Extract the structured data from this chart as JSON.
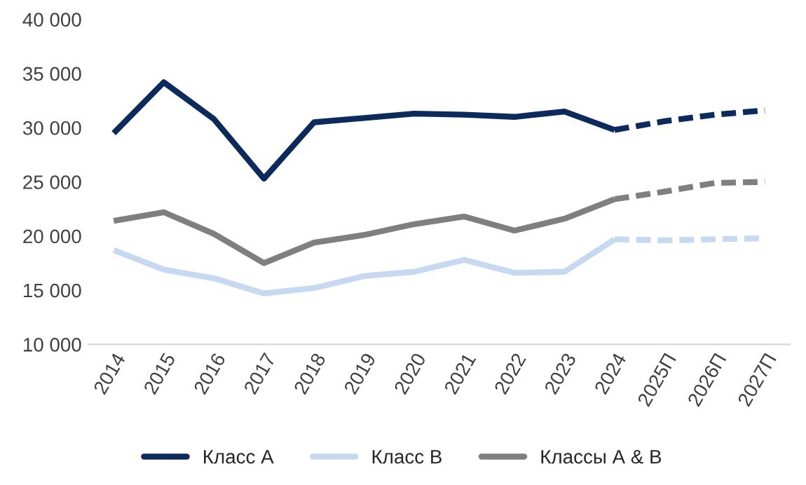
{
  "chart_data": {
    "type": "line",
    "categories": [
      "2014",
      "2015",
      "2016",
      "2017",
      "2018",
      "2019",
      "2020",
      "2021",
      "2022",
      "2023",
      "2024",
      "2025П",
      "2026П",
      "2027П"
    ],
    "series": [
      {
        "name": "Класс А",
        "color": "#0d2a5c",
        "values": [
          29500,
          34200,
          30800,
          25300,
          30500,
          30900,
          31300,
          31200,
          31000,
          31500,
          29800,
          null,
          null,
          null
        ]
      },
      {
        "name": "Класс В",
        "color": "#c6d9f1",
        "values": [
          18700,
          16900,
          16100,
          14700,
          15200,
          16300,
          16700,
          17800,
          16600,
          16700,
          19700,
          null,
          null,
          null
        ]
      },
      {
        "name": "Классы А & В",
        "color": "#7f7f7f",
        "values": [
          21400,
          22200,
          20200,
          17500,
          19400,
          20100,
          21100,
          21800,
          20500,
          21600,
          23400,
          null,
          null,
          null
        ]
      },
      {
        "color": "#0d2a5c",
        "line_style": "dashed",
        "values": [
          null,
          null,
          null,
          null,
          null,
          null,
          null,
          null,
          null,
          null,
          29800,
          30600,
          31200,
          31600
        ]
      },
      {
        "color": "#c6d9f1",
        "line_style": "dashed",
        "values": [
          null,
          null,
          null,
          null,
          null,
          null,
          null,
          null,
          null,
          null,
          19700,
          19600,
          19700,
          19800
        ]
      },
      {
        "color": "#7f7f7f",
        "line_style": "dashed",
        "values": [
          null,
          null,
          null,
          null,
          null,
          null,
          null,
          null,
          null,
          null,
          23400,
          24100,
          24900,
          25000
        ]
      }
    ],
    "ylim": [
      10000,
      40000
    ],
    "yticks": [
      {
        "value": 10000,
        "label": "10 000"
      },
      {
        "value": 15000,
        "label": "15 000"
      },
      {
        "value": 20000,
        "label": "20 000"
      },
      {
        "value": 25000,
        "label": "25 000"
      },
      {
        "value": 30000,
        "label": "30 000"
      },
      {
        "value": 35000,
        "label": "35 000"
      },
      {
        "value": 40000,
        "label": "40 000"
      }
    ],
    "grid": false,
    "legend": "bottom",
    "line_style": "solid",
    "marker": "none"
  }
}
